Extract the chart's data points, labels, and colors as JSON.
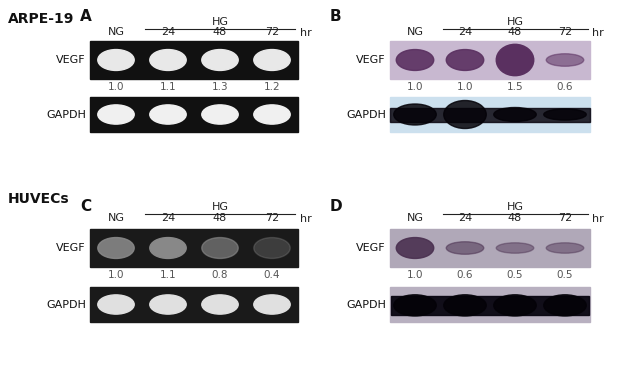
{
  "title_left": "ARPE-19",
  "title_left2": "HUVECs",
  "panel_labels": [
    "A",
    "B",
    "C",
    "D"
  ],
  "col_labels": [
    "NG",
    "24",
    "48",
    "72",
    "hr"
  ],
  "hg_label": "HG",
  "vegf_label": "VEGF",
  "gapdh_label": "GAPDH",
  "values_A": [
    "1.0",
    "1.1",
    "1.3",
    "1.2"
  ],
  "values_B": [
    "1.0",
    "1.0",
    "1.5",
    "0.6"
  ],
  "values_C": [
    "1.0",
    "1.1",
    "0.8",
    "0.4"
  ],
  "values_D": [
    "1.0",
    "0.6",
    "0.5",
    "0.5"
  ],
  "bg_color": "#ffffff",
  "gel_bg": "#111111",
  "gel_bg_C": "#1a1a1a",
  "blot_bg_B": "#c8b8d0",
  "blot_bg_D": "#b0a8b8",
  "band_color_A": "#e8e8e8",
  "band_color_C": "#888888",
  "band_color_gapdh_A": "#f0f0f0",
  "band_color_gapdh_C": "#e0e0e0",
  "text_color": "#222222",
  "value_color": "#555555"
}
